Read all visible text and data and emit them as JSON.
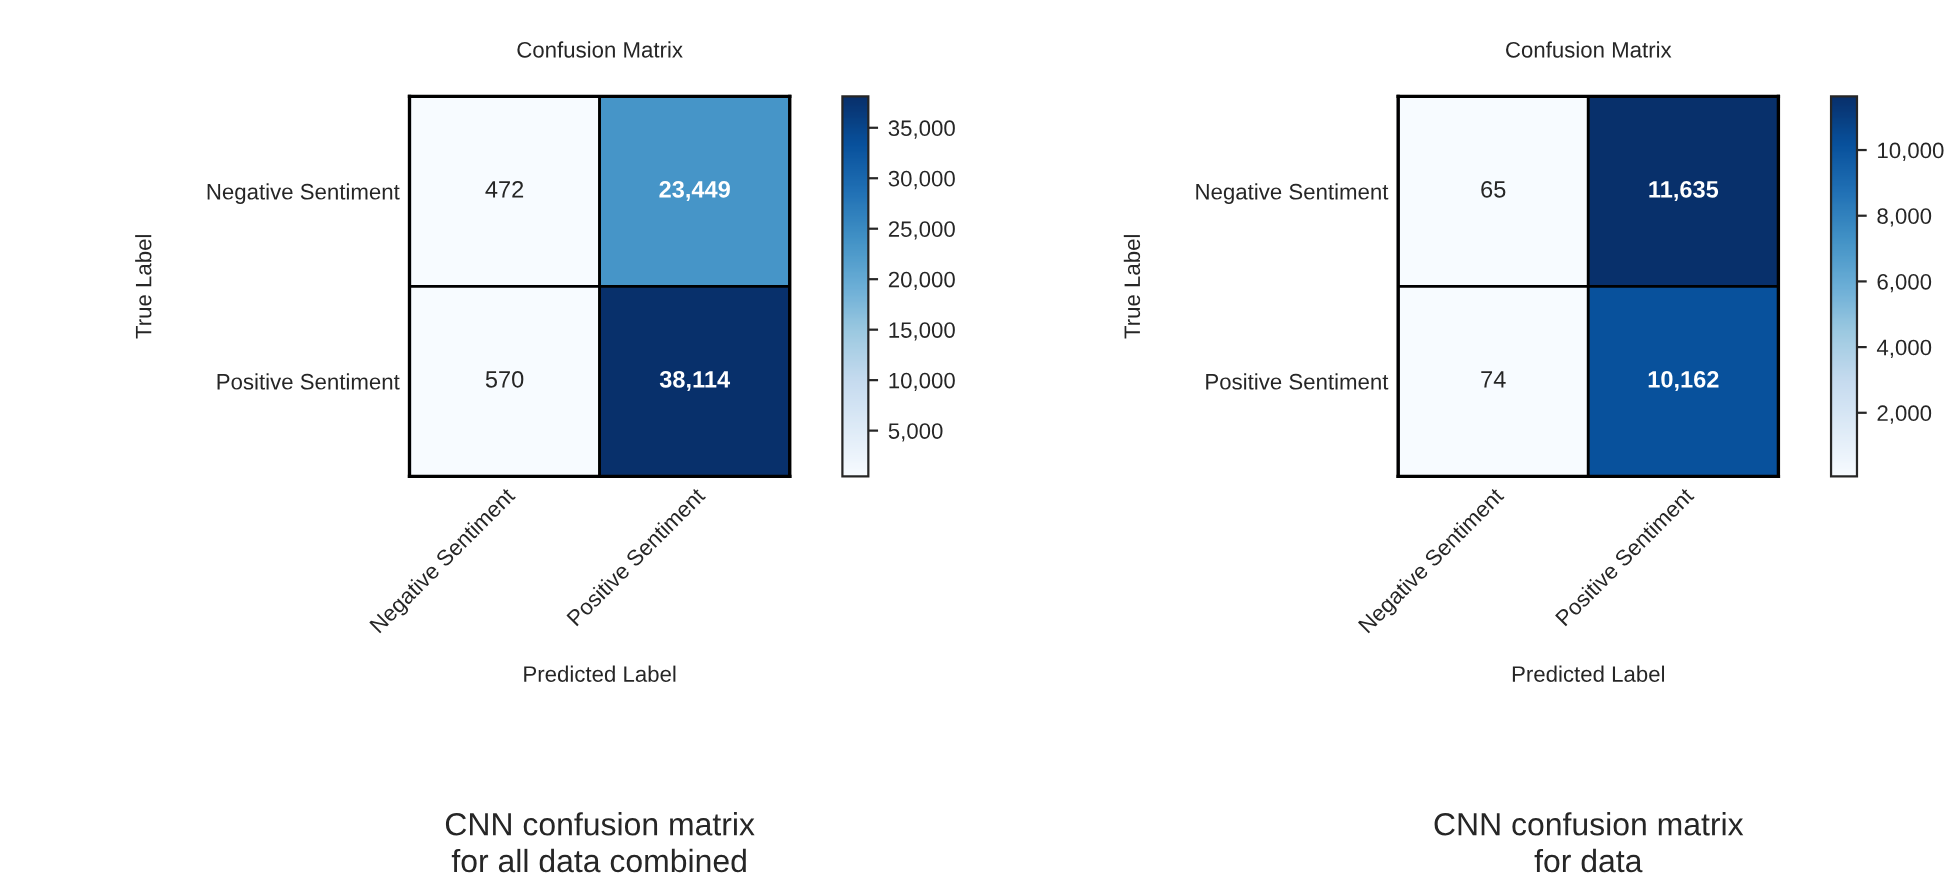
{
  "chart_data": [
    {
      "type": "heatmap",
      "title": "Confusion Matrix",
      "xlabel": "Predicted Label",
      "ylabel": "True Label",
      "categories": [
        "Negative Sentiment",
        "Positive Sentiment"
      ],
      "y_categories": [
        "Negative Sentiment",
        "Positive Sentiment"
      ],
      "cells": [
        [
          472,
          23449
        ],
        [
          570,
          38114
        ]
      ],
      "cell_labels": [
        [
          "472",
          "23,449"
        ],
        [
          "570",
          "38,114"
        ]
      ],
      "clim": [
        472,
        38114
      ],
      "cticks": [
        {
          "value": 5000,
          "label": "5,000"
        },
        {
          "value": 10000,
          "label": "10,000"
        },
        {
          "value": 15000,
          "label": "15,000"
        },
        {
          "value": 20000,
          "label": "20,000"
        },
        {
          "value": 25000,
          "label": "25,000"
        },
        {
          "value": 30000,
          "label": "30,000"
        },
        {
          "value": 35000,
          "label": "35,000"
        }
      ],
      "annotations": [
        "CNN confusion matrix\nfor all data combined"
      ]
    },
    {
      "type": "heatmap",
      "title": "Confusion Matrix",
      "xlabel": "Predicted Label",
      "ylabel": "True Label",
      "categories": [
        "Negative Sentiment",
        "Positive Sentiment"
      ],
      "y_categories": [
        "Negative Sentiment",
        "Positive Sentiment"
      ],
      "cells": [
        [
          65,
          11635
        ],
        [
          74,
          10162
        ]
      ],
      "cell_labels": [
        [
          "65",
          "11,635"
        ],
        [
          "74",
          "10,162"
        ]
      ],
      "clim": [
        65,
        11635
      ],
      "cticks": [
        {
          "value": 2000,
          "label": "2,000"
        },
        {
          "value": 4000,
          "label": "4,000"
        },
        {
          "value": 6000,
          "label": "6,000"
        },
        {
          "value": 8000,
          "label": "8,000"
        },
        {
          "value": 10000,
          "label": "10,000"
        }
      ],
      "annotations": [
        "CNN confusion matrix\nfor data"
      ]
    }
  ]
}
